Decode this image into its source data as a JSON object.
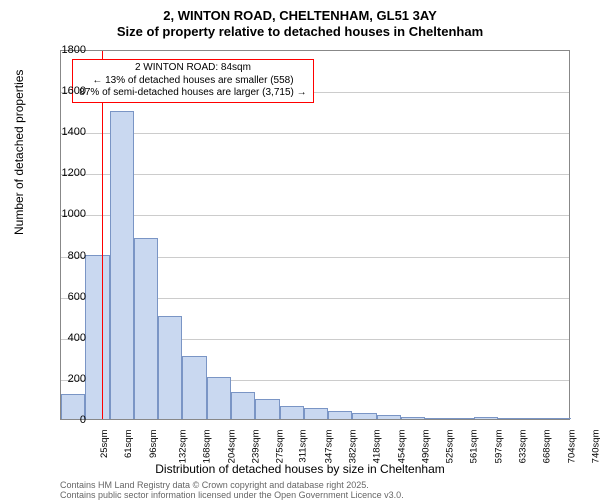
{
  "title": {
    "line1": "2, WINTON ROAD, CHELTENHAM, GL51 3AY",
    "line2": "Size of property relative to detached houses in Cheltenham",
    "fontsize": 13
  },
  "histogram": {
    "type": "histogram",
    "bar_color": "#c9d8f0",
    "bar_border": "#7a95c5",
    "categories": [
      "25sqm",
      "61sqm",
      "96sqm",
      "132sqm",
      "168sqm",
      "204sqm",
      "239sqm",
      "275sqm",
      "311sqm",
      "347sqm",
      "382sqm",
      "418sqm",
      "454sqm",
      "490sqm",
      "525sqm",
      "561sqm",
      "597sqm",
      "633sqm",
      "668sqm",
      "704sqm",
      "740sqm"
    ],
    "values": [
      120,
      800,
      1500,
      880,
      500,
      305,
      205,
      130,
      95,
      65,
      55,
      40,
      30,
      18,
      10,
      6,
      4,
      12,
      3,
      2,
      2
    ],
    "ylim": [
      0,
      1800
    ],
    "ytick_step": 200,
    "xlabel": "Distribution of detached houses by size in Cheltenham",
    "ylabel": "Number of detached properties",
    "label_fontsize": 12,
    "tick_fontsize": 11,
    "grid_color": "#cccccc",
    "plot_border": "#888888",
    "background_color": "#ffffff"
  },
  "reference_line": {
    "position_category_index": 1.7,
    "color": "#ff0000",
    "width": 1
  },
  "annotation_box": {
    "line1": "2 WINTON ROAD: 84sqm",
    "line2": "← 13% of detached houses are smaller (558)",
    "line3": "87% of semi-detached houses are larger (3,715) →",
    "border_color": "#ff0000",
    "text_color": "#000000",
    "fontsize": 10
  },
  "footer": {
    "line1": "Contains HM Land Registry data © Crown copyright and database right 2025.",
    "line2": "Contains public sector information licensed under the Open Government Licence v3.0.",
    "color": "#666666",
    "fontsize": 9
  }
}
